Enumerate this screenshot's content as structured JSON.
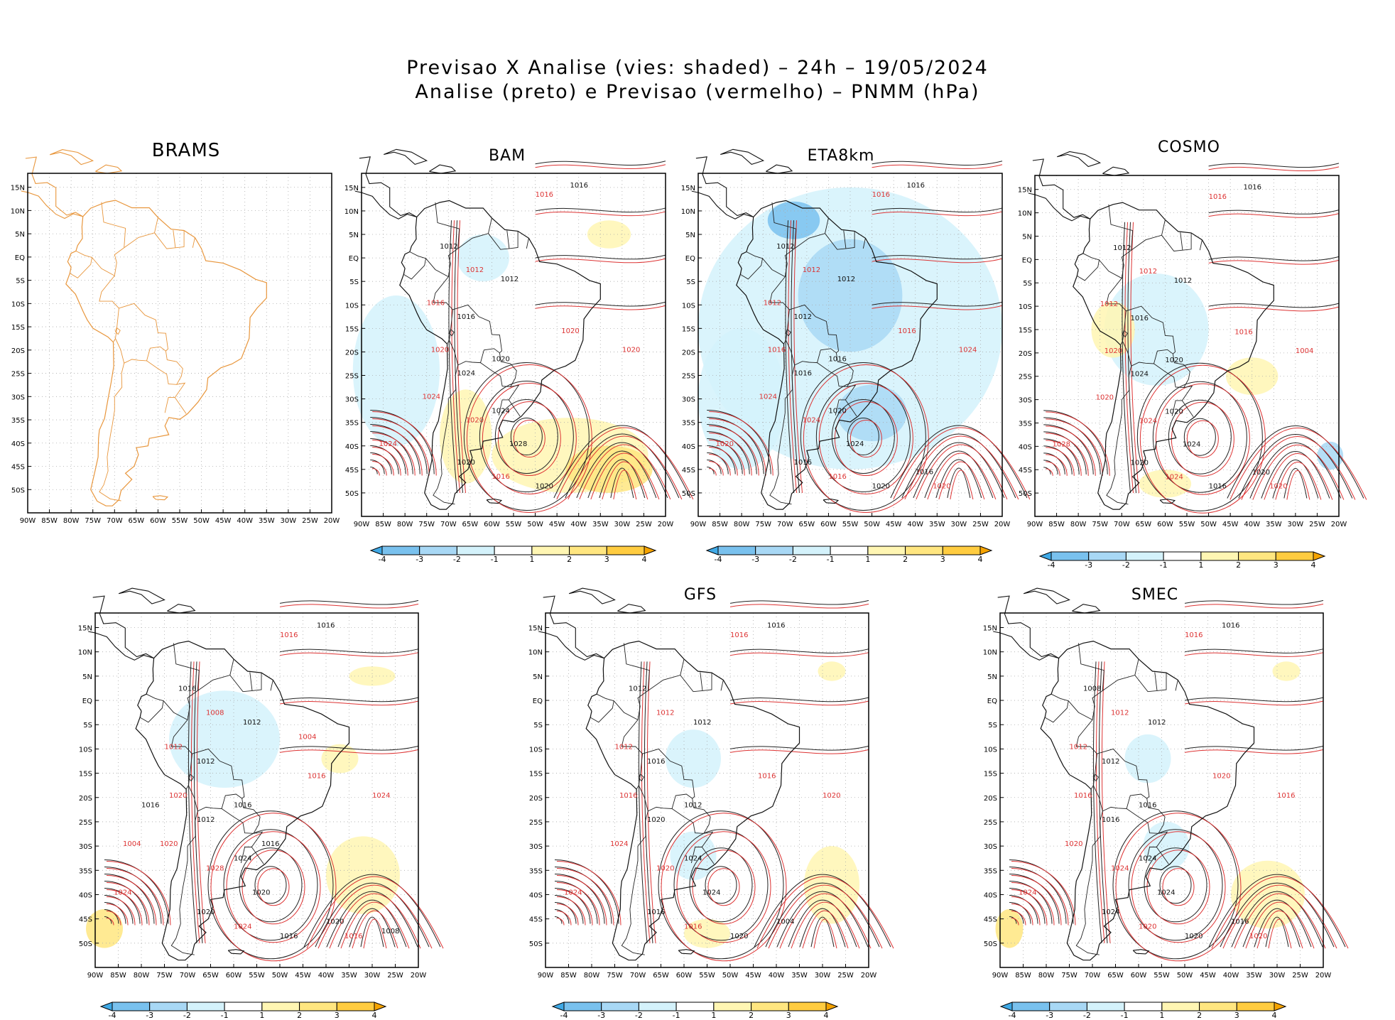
{
  "title": {
    "line1": "Previsao X Analise (vies: shaded) – 24h – 19/05/2024",
    "line2": "Analise (preto) e Previsao (vermelho) – PNMM (hPa)"
  },
  "panels": [
    {
      "name": "BRAMS",
      "has_colorbar": false
    },
    {
      "name": "BAM",
      "has_colorbar": true
    },
    {
      "name": "ETA8km",
      "has_colorbar": true
    },
    {
      "name": "COSMO",
      "has_colorbar": true
    },
    {
      "name": "",
      "has_colorbar": true
    },
    {
      "name": "GFS",
      "has_colorbar": true
    },
    {
      "name": "SMEC",
      "has_colorbar": true
    }
  ],
  "lat_labels": [
    "15N",
    "10N",
    "5N",
    "EQ",
    "5S",
    "10S",
    "15S",
    "20S",
    "25S",
    "30S",
    "35S",
    "40S",
    "45S",
    "50S"
  ],
  "lon_labels": [
    "90W",
    "85W",
    "80W",
    "75W",
    "70W",
    "65W",
    "60W",
    "55W",
    "50W",
    "45W",
    "40W",
    "35W",
    "30W",
    "25W",
    "20W"
  ],
  "colorbar": {
    "labels": [
      "-4",
      "-3",
      "-2",
      "-1",
      "1",
      "2",
      "3",
      "4"
    ],
    "colors": [
      "#3fa9e6",
      "#79c1ee",
      "#a8d8f5",
      "#d4f2fb",
      "#ffffff",
      "#fff6b3",
      "#ffe680",
      "#ffcc40",
      "#f5a300"
    ]
  },
  "isobar_labels": {
    "BAM": [
      "1016",
      "1016",
      "1012",
      "1012",
      "1012",
      "1016",
      "1016",
      "1020",
      "1020",
      "1020",
      "1024",
      "1024",
      "1024",
      "1020",
      "1028",
      "1024",
      "1020",
      "1016",
      "1020",
      "1020"
    ],
    "ETA8km": [
      "1016",
      "1016",
      "1012",
      "1012",
      "1012",
      "1012",
      "1012",
      "1016",
      "1016",
      "1016",
      "1016",
      "1024",
      "1020",
      "1024",
      "1024",
      "1020",
      "1016",
      "1016",
      "1020",
      "1024",
      "1016",
      "1020"
    ],
    "COSMO": [
      "1016",
      "1016",
      "1012",
      "1012",
      "1012",
      "1012",
      "1016",
      "1020",
      "1020",
      "1016",
      "1024",
      "1020",
      "1020",
      "1024",
      "1024",
      "1028",
      "1020",
      "1024",
      "1016",
      "1004",
      "1020",
      "1020"
    ],
    "P5": [
      "1016",
      "1016",
      "1016",
      "1008",
      "1012",
      "1012",
      "1012",
      "1020",
      "1016",
      "1016",
      "1012",
      "1020",
      "1024",
      "1028",
      "1020",
      "1024",
      "1020",
      "1024",
      "1016",
      "1024",
      "1020",
      "1016",
      "1016",
      "1004",
      "1008",
      "1004",
      "1016"
    ],
    "GFS": [
      "1016",
      "1016",
      "1012",
      "1012",
      "1012",
      "1012",
      "1016",
      "1016",
      "1012",
      "1016",
      "1020",
      "1024",
      "1024",
      "1020",
      "1024",
      "1024",
      "1016",
      "1016",
      "1020",
      "1020",
      "1004"
    ],
    "SMEC": [
      "1016",
      "1016",
      "1008",
      "1012",
      "1012",
      "1012",
      "1012",
      "1016",
      "1016",
      "1020",
      "1016",
      "1020",
      "1024",
      "1024",
      "1024",
      "1024",
      "1024",
      "1020",
      "1020",
      "1016",
      "1016",
      "1020"
    ]
  }
}
